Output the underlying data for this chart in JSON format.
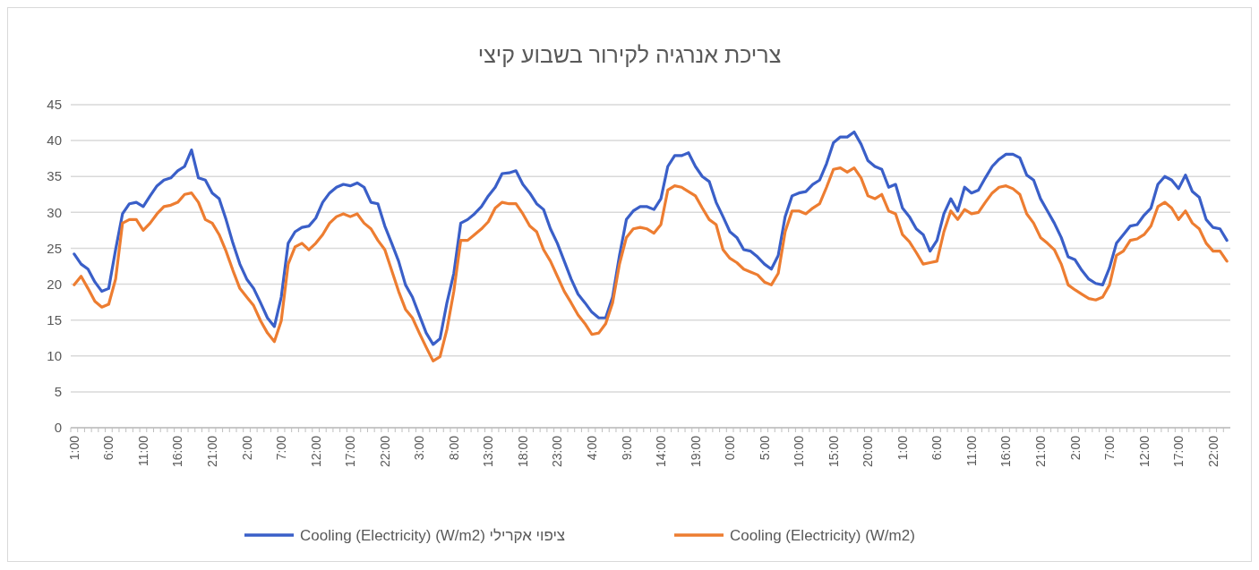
{
  "chart_data": {
    "type": "line",
    "title": "צריכת אנרגיה לקירור בשבוע קיצי",
    "categories": [
      "1:00",
      null,
      null,
      null,
      null,
      "6:00",
      null,
      null,
      null,
      null,
      "11:00",
      null,
      null,
      null,
      null,
      "16:00",
      null,
      null,
      null,
      null,
      "21:00",
      null,
      null,
      null,
      null,
      "2:00",
      null,
      null,
      null,
      null,
      "7:00",
      null,
      null,
      null,
      null,
      "12:00",
      null,
      null,
      null,
      null,
      "17:00",
      null,
      null,
      null,
      null,
      "22:00",
      null,
      null,
      null,
      null,
      "3:00",
      null,
      null,
      null,
      null,
      "8:00",
      null,
      null,
      null,
      null,
      "13:00",
      null,
      null,
      null,
      null,
      "18:00",
      null,
      null,
      null,
      null,
      "23:00",
      null,
      null,
      null,
      null,
      "4:00",
      null,
      null,
      null,
      null,
      "9:00",
      null,
      null,
      null,
      null,
      "14:00",
      null,
      null,
      null,
      null,
      "19:00",
      null,
      null,
      null,
      null,
      "0:00",
      null,
      null,
      null,
      null,
      "5:00",
      null,
      null,
      null,
      null,
      "10:00",
      null,
      null,
      null,
      null,
      "15:00",
      null,
      null,
      null,
      null,
      "20:00",
      null,
      null,
      null,
      null,
      "1:00",
      null,
      null,
      null,
      null,
      "6:00",
      null,
      null,
      null,
      null,
      "11:00",
      null,
      null,
      null,
      null,
      "16:00",
      null,
      null,
      null,
      null,
      "21:00",
      null,
      null,
      null,
      null,
      "2:00",
      null,
      null,
      null,
      null,
      "7:00",
      null,
      null,
      null,
      null,
      "12:00",
      null,
      null,
      null,
      null,
      "17:00",
      null,
      null,
      null,
      null,
      "22:00",
      null,
      null
    ],
    "series": [
      {
        "name": "Cooling (Electricity) (W/m2) ציפוי אקרילי",
        "color": "#3a5fc8",
        "values": [
          24.2,
          22.8,
          22.1,
          20.3,
          19.0,
          19.4,
          24.8,
          29.8,
          31.2,
          31.4,
          30.8,
          32.3,
          33.7,
          34.5,
          34.8,
          35.8,
          36.4,
          38.7,
          34.8,
          34.5,
          32.7,
          31.9,
          29.0,
          25.7,
          22.8,
          20.7,
          19.4,
          17.4,
          15.3,
          14.1,
          18.2,
          25.7,
          27.3,
          27.9,
          28.1,
          29.2,
          31.4,
          32.7,
          33.5,
          33.9,
          33.7,
          34.1,
          33.5,
          31.4,
          31.2,
          28.1,
          25.7,
          23.2,
          19.9,
          18.2,
          15.7,
          13.2,
          11.6,
          12.4,
          17.4,
          21.5,
          28.5,
          29.0,
          29.8,
          30.8,
          32.3,
          33.5,
          35.4,
          35.5,
          35.8,
          33.9,
          32.7,
          31.2,
          30.4,
          27.7,
          25.7,
          23.2,
          20.7,
          18.6,
          17.4,
          16.1,
          15.3,
          15.3,
          18.2,
          24.0,
          29.0,
          30.2,
          30.8,
          30.8,
          30.4,
          31.9,
          36.4,
          37.9,
          37.9,
          38.3,
          36.4,
          35.0,
          34.3,
          31.4,
          29.4,
          27.3,
          26.5,
          24.8,
          24.6,
          23.8,
          22.8,
          22.1,
          24.0,
          29.4,
          32.3,
          32.7,
          32.9,
          33.9,
          34.5,
          36.8,
          39.7,
          40.5,
          40.5,
          41.2,
          39.5,
          37.2,
          36.4,
          36.0,
          33.5,
          33.9,
          30.6,
          29.4,
          27.7,
          26.9,
          24.6,
          26.1,
          29.8,
          31.9,
          30.2,
          33.5,
          32.7,
          33.1,
          34.8,
          36.4,
          37.4,
          38.1,
          38.1,
          37.6,
          35.2,
          34.5,
          31.9,
          30.2,
          28.5,
          26.5,
          23.8,
          23.4,
          21.9,
          20.7,
          20.1,
          19.9,
          22.3,
          25.7,
          26.9,
          28.1,
          28.3,
          29.6,
          30.6,
          33.9,
          35.0,
          34.5,
          33.3,
          35.2,
          32.9,
          32.1,
          29.0,
          27.9,
          27.7,
          26.1
        ]
      },
      {
        "name": "Cooling (Electricity) (W/m2)",
        "color": "#ed7d31",
        "values": [
          19.9,
          21.1,
          19.4,
          17.6,
          16.8,
          17.2,
          20.7,
          28.5,
          29.0,
          29.0,
          27.5,
          28.5,
          29.8,
          30.8,
          31.0,
          31.4,
          32.5,
          32.7,
          31.4,
          29.0,
          28.5,
          26.9,
          24.6,
          21.9,
          19.4,
          18.2,
          17.0,
          14.9,
          13.2,
          12.0,
          14.9,
          22.8,
          25.2,
          25.7,
          24.8,
          25.7,
          26.9,
          28.5,
          29.4,
          29.8,
          29.4,
          29.8,
          28.5,
          27.7,
          26.1,
          24.8,
          21.9,
          19.0,
          16.5,
          15.3,
          13.2,
          11.2,
          9.3,
          9.9,
          13.7,
          19.0,
          26.1,
          26.1,
          26.9,
          27.7,
          28.7,
          30.6,
          31.4,
          31.2,
          31.2,
          29.8,
          28.1,
          27.3,
          24.8,
          23.2,
          21.1,
          19.0,
          17.4,
          15.7,
          14.5,
          13.0,
          13.2,
          14.5,
          17.4,
          22.8,
          26.5,
          27.7,
          27.9,
          27.7,
          27.1,
          28.3,
          33.1,
          33.7,
          33.5,
          32.9,
          32.3,
          30.6,
          29.0,
          28.3,
          24.8,
          23.6,
          23.0,
          22.1,
          21.7,
          21.3,
          20.3,
          19.9,
          21.5,
          27.3,
          30.2,
          30.2,
          29.8,
          30.6,
          31.2,
          33.5,
          36.0,
          36.2,
          35.6,
          36.2,
          34.8,
          32.3,
          31.9,
          32.5,
          30.2,
          29.8,
          26.9,
          25.9,
          24.4,
          22.8,
          23.0,
          23.2,
          27.3,
          30.2,
          29.0,
          30.4,
          29.8,
          30.0,
          31.4,
          32.7,
          33.5,
          33.7,
          33.3,
          32.5,
          29.8,
          28.5,
          26.5,
          25.7,
          24.8,
          22.8,
          19.9,
          19.2,
          18.6,
          18.0,
          17.8,
          18.2,
          19.9,
          24.0,
          24.6,
          26.1,
          26.3,
          26.9,
          28.1,
          30.8,
          31.4,
          30.6,
          29.0,
          30.2,
          28.5,
          27.7,
          25.7,
          24.6,
          24.6,
          23.2
        ]
      }
    ],
    "ylim": [
      0,
      45
    ],
    "yticks": [
      0,
      5,
      10,
      15,
      20,
      25,
      30,
      35,
      40,
      45
    ],
    "grid": "y",
    "legend": "bottom",
    "line_style": "solid",
    "marker": "none"
  }
}
